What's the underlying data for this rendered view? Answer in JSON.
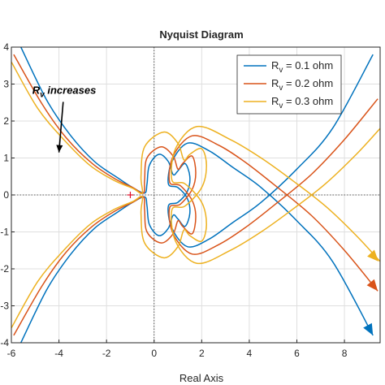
{
  "chart_data": {
    "type": "line",
    "title": "Nyquist Diagram",
    "xlabel": "Real Axis",
    "ylabel": "",
    "xlim": [
      -6,
      9.5
    ],
    "ylim": [
      -4,
      4
    ],
    "xticks": [
      -6,
      -4,
      -2,
      0,
      2,
      4,
      6,
      8
    ],
    "yticks": [
      -4,
      -3,
      -2,
      -1,
      0,
      1,
      2,
      3,
      4
    ],
    "grid": true,
    "legend_position": "top-right",
    "critical_point": [
      -1,
      0
    ],
    "series": [
      {
        "name": "R",
        "name_sub": "v",
        "name_suffix": " = 0.1 ohm",
        "color": "#0072BD",
        "points": [
          [
            -5.6,
            4.0
          ],
          [
            -4.5,
            2.55
          ],
          [
            -3.5,
            1.6
          ],
          [
            -2.5,
            0.9
          ],
          [
            -1.5,
            0.45
          ],
          [
            -0.9,
            0.2
          ],
          [
            -0.4,
            0.05
          ],
          [
            -0.3,
            0.3
          ],
          [
            -0.2,
            0.8
          ],
          [
            0.2,
            1.1
          ],
          [
            0.6,
            0.9
          ],
          [
            0.8,
            0.55
          ],
          [
            1.0,
            0.65
          ],
          [
            1.3,
            0.85
          ],
          [
            1.5,
            0.5
          ],
          [
            1.4,
            0.1
          ],
          [
            1.0,
            -0.2
          ],
          [
            0.6,
            -0.3
          ],
          [
            0.75,
            -0.9
          ],
          [
            1.4,
            -1.4
          ],
          [
            2.3,
            -1.2
          ],
          [
            3.3,
            -0.75
          ],
          [
            4.5,
            -0.2
          ],
          [
            6.0,
            0.7
          ],
          [
            7.5,
            1.8
          ],
          [
            9.2,
            3.8
          ]
        ],
        "points_lower": [
          [
            -5.6,
            -4.0
          ],
          [
            -4.5,
            -2.55
          ],
          [
            -3.5,
            -1.6
          ],
          [
            -2.5,
            -0.9
          ],
          [
            -1.5,
            -0.45
          ],
          [
            -0.9,
            -0.2
          ],
          [
            -0.4,
            -0.05
          ],
          [
            -0.3,
            -0.3
          ],
          [
            -0.2,
            -0.8
          ],
          [
            0.2,
            -1.1
          ],
          [
            0.6,
            -0.9
          ],
          [
            0.8,
            -0.55
          ],
          [
            1.0,
            -0.65
          ],
          [
            1.3,
            -0.85
          ],
          [
            1.5,
            -0.5
          ],
          [
            1.4,
            -0.1
          ],
          [
            1.0,
            0.2
          ],
          [
            0.6,
            0.3
          ],
          [
            0.75,
            0.9
          ],
          [
            1.4,
            1.4
          ],
          [
            2.3,
            1.2
          ],
          [
            3.3,
            0.75
          ],
          [
            4.5,
            0.2
          ],
          [
            6.0,
            -0.7
          ],
          [
            7.5,
            -1.8
          ],
          [
            9.2,
            -3.8
          ]
        ]
      },
      {
        "name": "R",
        "name_sub": "v",
        "name_suffix": " = 0.2 ohm",
        "color": "#D95319",
        "points": [
          [
            -5.9,
            3.8
          ],
          [
            -4.7,
            2.45
          ],
          [
            -3.7,
            1.55
          ],
          [
            -2.6,
            0.85
          ],
          [
            -1.6,
            0.42
          ],
          [
            -0.9,
            0.2
          ],
          [
            -0.45,
            0.05
          ],
          [
            -0.4,
            0.4
          ],
          [
            -0.3,
            1.0
          ],
          [
            0.3,
            1.3
          ],
          [
            0.8,
            1.05
          ],
          [
            1.0,
            0.7
          ],
          [
            1.2,
            0.85
          ],
          [
            1.6,
            1.05
          ],
          [
            1.75,
            0.6
          ],
          [
            1.6,
            0.15
          ],
          [
            1.1,
            -0.25
          ],
          [
            0.65,
            -0.35
          ],
          [
            0.8,
            -1.05
          ],
          [
            1.6,
            -1.6
          ],
          [
            2.7,
            -1.35
          ],
          [
            3.8,
            -0.9
          ],
          [
            5.0,
            -0.3
          ],
          [
            6.6,
            0.55
          ],
          [
            8.0,
            1.5
          ],
          [
            9.4,
            2.6
          ]
        ],
        "points_lower": [
          [
            -5.9,
            -3.8
          ],
          [
            -4.7,
            -2.45
          ],
          [
            -3.7,
            -1.55
          ],
          [
            -2.6,
            -0.85
          ],
          [
            -1.6,
            -0.42
          ],
          [
            -0.9,
            -0.2
          ],
          [
            -0.45,
            -0.05
          ],
          [
            -0.4,
            -0.4
          ],
          [
            -0.3,
            -1.0
          ],
          [
            0.3,
            -1.3
          ],
          [
            0.8,
            -1.05
          ],
          [
            1.0,
            -0.7
          ],
          [
            1.2,
            -0.85
          ],
          [
            1.6,
            -1.05
          ],
          [
            1.75,
            -0.6
          ],
          [
            1.6,
            -0.15
          ],
          [
            1.1,
            0.25
          ],
          [
            0.65,
            0.35
          ],
          [
            0.8,
            1.05
          ],
          [
            1.6,
            1.6
          ],
          [
            2.7,
            1.35
          ],
          [
            3.8,
            0.9
          ],
          [
            5.0,
            0.3
          ],
          [
            6.6,
            -0.55
          ],
          [
            8.0,
            -1.5
          ],
          [
            9.4,
            -2.6
          ]
        ]
      },
      {
        "name": "R",
        "name_sub": "v",
        "name_suffix": " = 0.3 ohm",
        "color": "#EDB120",
        "points": [
          [
            -6.0,
            3.6
          ],
          [
            -4.9,
            2.35
          ],
          [
            -3.8,
            1.5
          ],
          [
            -2.7,
            0.8
          ],
          [
            -1.7,
            0.4
          ],
          [
            -0.9,
            0.18
          ],
          [
            -0.5,
            0.05
          ],
          [
            -0.55,
            0.5
          ],
          [
            -0.4,
            1.3
          ],
          [
            0.4,
            1.7
          ],
          [
            1.0,
            1.4
          ],
          [
            1.25,
            0.95
          ],
          [
            1.5,
            1.1
          ],
          [
            2.0,
            1.25
          ],
          [
            2.2,
            0.8
          ],
          [
            2.0,
            0.2
          ],
          [
            1.3,
            -0.3
          ],
          [
            0.75,
            -0.4
          ],
          [
            0.9,
            -1.25
          ],
          [
            1.8,
            -1.85
          ],
          [
            3.2,
            -1.5
          ],
          [
            4.5,
            -1.0
          ],
          [
            5.8,
            -0.4
          ],
          [
            7.2,
            0.3
          ],
          [
            8.5,
            1.1
          ],
          [
            9.5,
            1.8
          ]
        ],
        "points_lower": [
          [
            -6.0,
            -3.6
          ],
          [
            -4.9,
            -2.35
          ],
          [
            -3.8,
            -1.5
          ],
          [
            -2.7,
            -0.8
          ],
          [
            -1.7,
            -0.4
          ],
          [
            -0.9,
            -0.18
          ],
          [
            -0.5,
            -0.05
          ],
          [
            -0.55,
            -0.5
          ],
          [
            -0.4,
            -1.3
          ],
          [
            0.4,
            -1.7
          ],
          [
            1.0,
            -1.4
          ],
          [
            1.25,
            -0.95
          ],
          [
            1.5,
            -1.1
          ],
          [
            2.0,
            -1.25
          ],
          [
            2.2,
            -0.8
          ],
          [
            2.0,
            -0.2
          ],
          [
            1.3,
            0.3
          ],
          [
            0.75,
            0.4
          ],
          [
            0.9,
            1.25
          ],
          [
            1.8,
            1.85
          ],
          [
            3.2,
            1.5
          ],
          [
            4.5,
            1.0
          ],
          [
            5.8,
            0.4
          ],
          [
            7.2,
            -0.3
          ],
          [
            8.5,
            -1.1
          ],
          [
            9.5,
            -1.8
          ]
        ]
      }
    ],
    "annotations": [
      {
        "text": "R",
        "sub": "v",
        "suffix": " increases",
        "at": [
          -4.3,
          2.65
        ],
        "arrow_to": [
          -4.0,
          1.15
        ]
      }
    ]
  }
}
